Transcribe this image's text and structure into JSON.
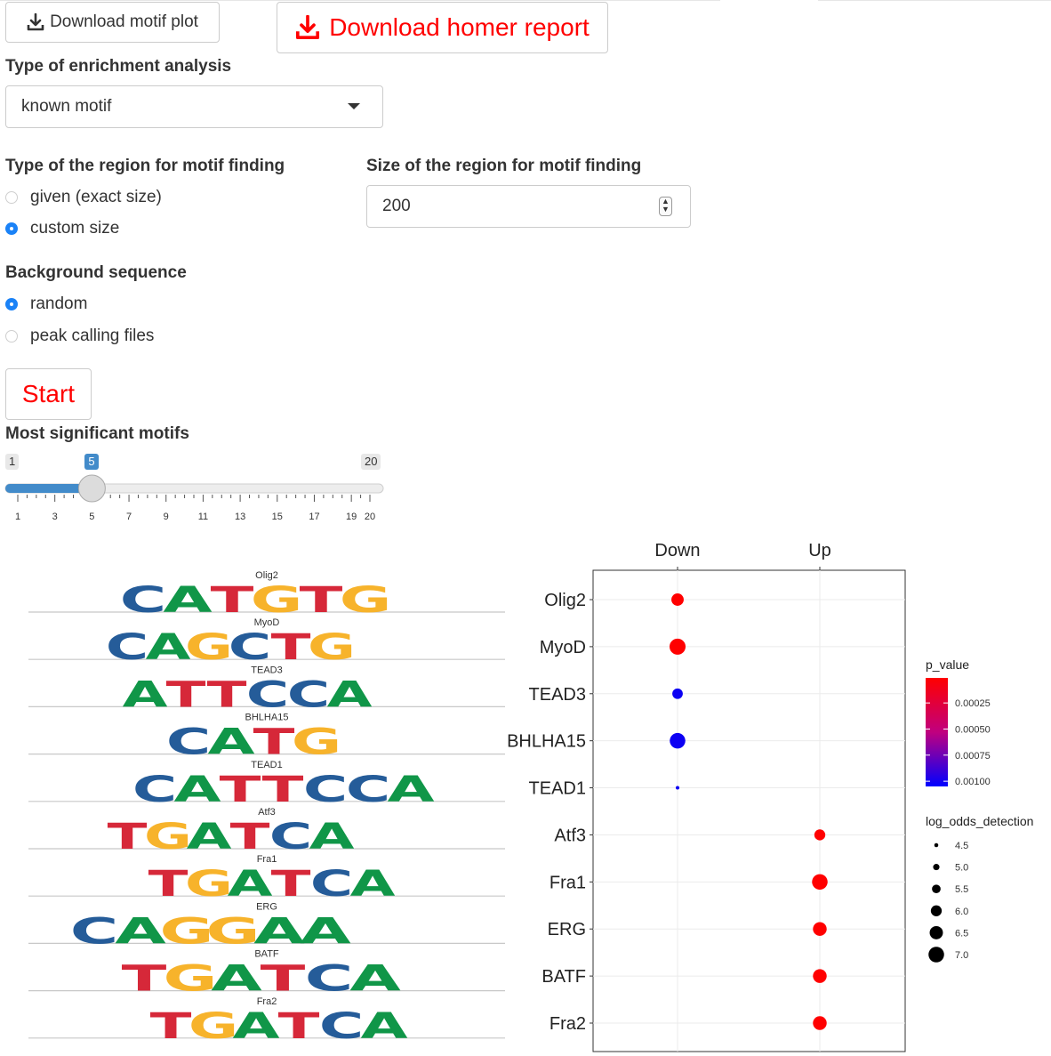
{
  "buttons": {
    "download_motif_plot": "Download motif plot",
    "download_homer_report": "Download homer report",
    "start": "Start"
  },
  "enrichment": {
    "label": "Type of enrichment analysis",
    "selected": "known motif"
  },
  "region_type": {
    "label": "Type of the region for motif finding",
    "options": [
      {
        "label": "given (exact size)",
        "checked": false
      },
      {
        "label": "custom size",
        "checked": true
      }
    ]
  },
  "region_size": {
    "label": "Size of the region for motif finding",
    "value": "200"
  },
  "background": {
    "label": "Background sequence",
    "options": [
      {
        "label": "random",
        "checked": true
      },
      {
        "label": "peak calling files",
        "checked": false
      }
    ]
  },
  "slider": {
    "label": "Most significant motifs",
    "min": 1,
    "max": 20,
    "value": 5,
    "min_label": "1",
    "max_label": "20",
    "value_label": "5",
    "tick_labels": [
      "1",
      "3",
      "5",
      "7",
      "9",
      "11",
      "13",
      "15",
      "17",
      "19",
      "20"
    ]
  },
  "colors": {
    "accent": "#428bca",
    "danger": "#ff0000",
    "radio_on": "#1a82f7",
    "base_A": "#109648",
    "base_C": "#255c99",
    "base_G": "#f7b32b",
    "base_T": "#d62839"
  },
  "motif_logos": [
    {
      "name": "Olig2",
      "sequence": "CATGTG",
      "other_letters": [
        "C",
        "A",
        "T",
        "G",
        "T",
        "G"
      ]
    },
    {
      "name": "MyoD",
      "sequence": "CAGCTG"
    },
    {
      "name": "TEAD3",
      "sequence": "ATTCCA"
    },
    {
      "name": "BHLHA15",
      "sequence": "CATG"
    },
    {
      "name": "TEAD1",
      "sequence": "CATTCCA"
    },
    {
      "name": "Atf3",
      "sequence": "TGATCA"
    },
    {
      "name": "Fra1",
      "sequence": "TGATCA"
    },
    {
      "name": "ERG",
      "sequence": "CAGGAA"
    },
    {
      "name": "BATF",
      "sequence": "TGATCA"
    },
    {
      "name": "Fra2",
      "sequence": "TGATCA"
    }
  ],
  "chart_data": {
    "type": "scatter",
    "x_categories": [
      "Down",
      "Up"
    ],
    "y_categories": [
      "Olig2",
      "MyoD",
      "TEAD3",
      "BHLHA15",
      "TEAD1",
      "Atf3",
      "Fra1",
      "ERG",
      "BATF",
      "Fra2"
    ],
    "points": [
      {
        "motif": "Olig2",
        "group": "Down",
        "p_value": 1e-05,
        "log_odds_detection": 6.3
      },
      {
        "motif": "MyoD",
        "group": "Down",
        "p_value": 1e-05,
        "log_odds_detection": 7.1
      },
      {
        "motif": "TEAD3",
        "group": "Down",
        "p_value": 0.001,
        "log_odds_detection": 5.9
      },
      {
        "motif": "BHLHA15",
        "group": "Down",
        "p_value": 0.001,
        "log_odds_detection": 7.0
      },
      {
        "motif": "TEAD1",
        "group": "Down",
        "p_value": 0.001,
        "log_odds_detection": 4.4
      },
      {
        "motif": "Atf3",
        "group": "Up",
        "p_value": 1e-05,
        "log_odds_detection": 6.0
      },
      {
        "motif": "Fra1",
        "group": "Up",
        "p_value": 1e-05,
        "log_odds_detection": 7.0
      },
      {
        "motif": "ERG",
        "group": "Up",
        "p_value": 1e-05,
        "log_odds_detection": 6.6
      },
      {
        "motif": "BATF",
        "group": "Up",
        "p_value": 1e-05,
        "log_odds_detection": 6.6
      },
      {
        "motif": "Fra2",
        "group": "Up",
        "p_value": 1e-05,
        "log_odds_detection": 6.6
      }
    ],
    "color_legend": {
      "title": "p_value",
      "ticks": [
        "0.00025",
        "0.00050",
        "0.00075",
        "0.00100"
      ],
      "range": [
        1e-05,
        0.00105
      ],
      "low_color": "#ff0000",
      "high_color": "#0000ff"
    },
    "size_legend": {
      "title": "log_odds_detection",
      "ticks": [
        "4.5",
        "5.0",
        "5.5",
        "6.0",
        "6.5",
        "7.0"
      ]
    },
    "grid": true,
    "legend_position": "right"
  }
}
